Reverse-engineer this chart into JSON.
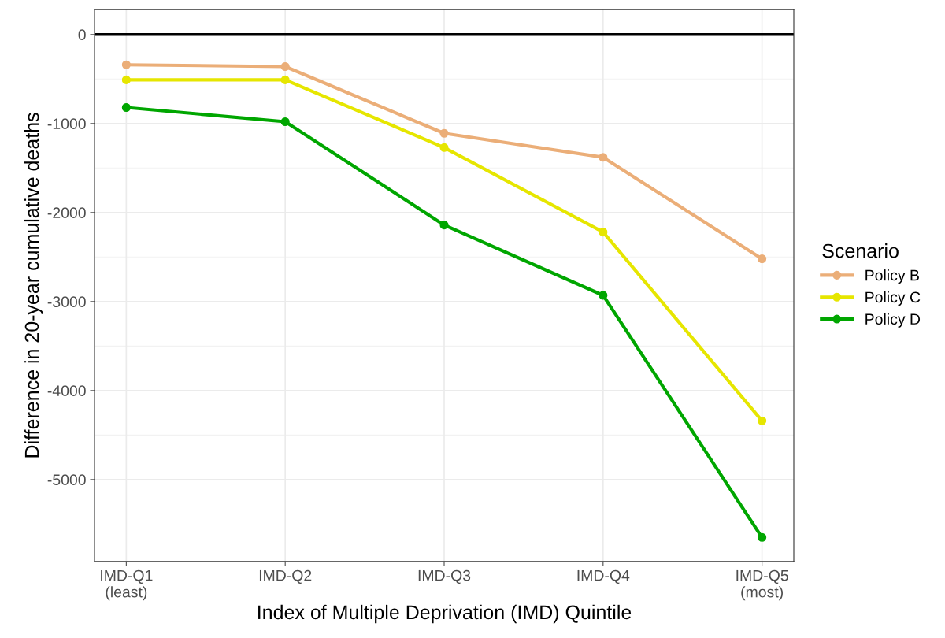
{
  "chart_data": {
    "type": "line",
    "xlabel": "Index of Multiple Deprivation (IMD) Quintile",
    "ylabel": "Difference in 20-year cumulative deaths",
    "legend_title": "Scenario",
    "categories": [
      "IMD-Q1\n(least)",
      "IMD-Q2",
      "IMD-Q3",
      "IMD-Q4",
      "IMD-Q5\n(most)"
    ],
    "series": [
      {
        "name": "Policy B",
        "color": "#ebae78",
        "values": [
          -340,
          -360,
          -1110,
          -1380,
          -2520
        ]
      },
      {
        "name": "Policy C",
        "color": "#e6e600",
        "values": [
          -510,
          -510,
          -1270,
          -2220,
          -4340
        ]
      },
      {
        "name": "Policy D",
        "color": "#00a600",
        "values": [
          -820,
          -980,
          -2140,
          -2930,
          -5650
        ]
      }
    ],
    "ylim": [
      -5920,
      280
    ],
    "yticks": [
      -5000,
      -4000,
      -3000,
      -2000,
      -1000,
      0
    ],
    "ref_lines": [
      {
        "axis": "y",
        "value": 0,
        "label": null,
        "color": "#000000"
      }
    ],
    "grid": true,
    "legend": "right",
    "marker": "circle",
    "line_style": "solid"
  }
}
